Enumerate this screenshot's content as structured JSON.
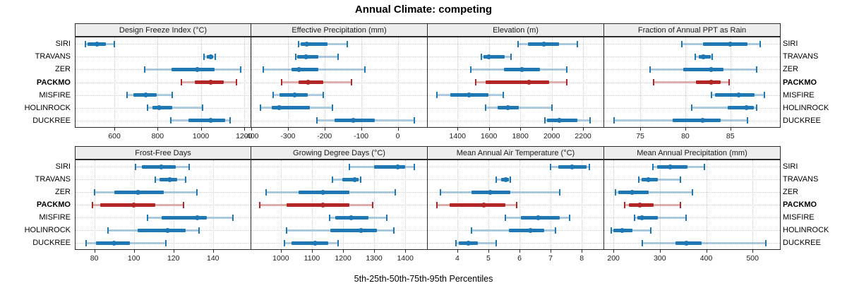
{
  "title": "Annual Climate: competing",
  "xlabel": "5th-25th-50th-75th-95th Percentiles",
  "chart_data": {
    "type": "dot-interval-trellis",
    "title": "Annual Climate: competing",
    "xlabel": "5th-25th-50th-75th-95th Percentiles",
    "percentiles_shown": [
      "5th",
      "25th",
      "50th",
      "75th",
      "95th"
    ],
    "sites": [
      "SIRI",
      "TRAVANS",
      "ZER",
      "PACKMO",
      "MISFIRE",
      "HOLINROCK",
      "DUCKREE"
    ],
    "highlight_site": "PACKMO",
    "legend_position": "none",
    "grid": "dotted",
    "layout": "2 rows x 4 columns, site labels on left and right of each row",
    "colors": {
      "series_normal": "#1f77b4",
      "series_normal_light": "rgba(31,119,180,0.35)",
      "series_highlight": "#b22725",
      "series_highlight_light": "rgba(178,39,37,0.35)",
      "strip_background": "#ededed",
      "panel_border": "#2b2b2b",
      "gridline": "#c9c9c9"
    },
    "panels": [
      {
        "title": "Design Freeze Index (°C)",
        "xlim": [
          420,
          1230
        ],
        "ticks": [
          600,
          800,
          1000,
          1200
        ],
        "values": [
          [
            467,
            474,
            518,
            559,
            600
          ],
          [
            1014,
            1028,
            1044,
            1056,
            1067
          ],
          [
            741,
            863,
            985,
            1063,
            1185
          ],
          [
            909,
            971,
            1044,
            1107,
            1164
          ],
          [
            660,
            689,
            746,
            797,
            868
          ],
          [
            754,
            776,
            806,
            868,
            1007
          ],
          [
            860,
            944,
            1044,
            1112,
            1134
          ]
        ]
      },
      {
        "title": "Effective Precipitation (mm)",
        "xlim": [
          -400,
          80
        ],
        "ticks": [
          -400,
          -300,
          -200,
          -100,
          0
        ],
        "values": [
          [
            -271,
            -266,
            -249,
            -191,
            -138
          ],
          [
            -279,
            -274,
            -251,
            -217,
            -162
          ],
          [
            -367,
            -290,
            -269,
            -217,
            -90
          ],
          [
            -317,
            -271,
            -245,
            -204,
            -126
          ],
          [
            -340,
            -322,
            -281,
            -245,
            -204
          ],
          [
            -374,
            -345,
            -324,
            -240,
            -178
          ],
          [
            -220,
            -172,
            -122,
            -63,
            46
          ]
        ]
      },
      {
        "title": "Elevation (m)",
        "xlim": [
          1210,
          2330
        ],
        "ticks": [
          1400,
          1600,
          1800,
          2000,
          2200
        ],
        "values": [
          [
            1785,
            1850,
            1950,
            2045,
            2165
          ],
          [
            1550,
            1565,
            1600,
            1700,
            1740
          ],
          [
            1485,
            1695,
            1810,
            1925,
            2095
          ],
          [
            1515,
            1580,
            1855,
            1985,
            2095
          ],
          [
            1270,
            1355,
            1475,
            1595,
            1690
          ],
          [
            1580,
            1655,
            1720,
            1790,
            2000
          ],
          [
            1955,
            1970,
            2050,
            2165,
            2245
          ]
        ]
      },
      {
        "title": "Fraction of Annual PPT as Rain",
        "xlim": [
          71,
          90.5
        ],
        "ticks": [
          75,
          80,
          85
        ],
        "values": [
          [
            79.6,
            82.0,
            85.0,
            86.9,
            88.3
          ],
          [
            81.1,
            81.5,
            82.0,
            82.8,
            83.0
          ],
          [
            76.1,
            79.8,
            82.9,
            84.2,
            87.9
          ],
          [
            76.5,
            81.2,
            82.9,
            83.9,
            84.9
          ],
          [
            82.9,
            83.3,
            85.9,
            87.7,
            88.8
          ],
          [
            80.7,
            84.7,
            86.8,
            87.6,
            87.9
          ],
          [
            72.1,
            78.6,
            81.9,
            83.9,
            86.9
          ]
        ]
      },
      {
        "title": "Frost-Free Days",
        "xlim": [
          70.5,
          159
        ],
        "ticks": [
          80,
          100,
          120,
          140
        ],
        "values": [
          [
            101,
            104,
            114,
            121,
            128
          ],
          [
            111,
            113,
            118,
            122,
            126
          ],
          [
            80,
            90,
            102,
            115,
            132
          ],
          [
            79,
            83,
            100,
            111,
            125
          ],
          [
            107,
            114,
            132,
            137,
            150
          ],
          [
            87,
            102,
            117,
            126,
            133
          ],
          [
            76,
            81,
            90,
            98,
            116
          ]
        ]
      },
      {
        "title": "Growing Degree Days (°C)",
        "xlim": [
          905,
          1470
        ],
        "ticks": [
          1000,
          1100,
          1200,
          1300,
          1400
        ],
        "values": [
          [
            1220,
            1300,
            1375,
            1400,
            1430
          ],
          [
            1165,
            1197,
            1238,
            1250,
            1256
          ],
          [
            953,
            1057,
            1135,
            1220,
            1368
          ],
          [
            933,
            1019,
            1135,
            1220,
            1295
          ],
          [
            1156,
            1175,
            1226,
            1281,
            1340
          ],
          [
            1019,
            1160,
            1257,
            1310,
            1363
          ],
          [
            1011,
            1034,
            1110,
            1152,
            1184
          ]
        ]
      },
      {
        "title": "Mean Annual Air Temperature (°C)",
        "xlim": [
          3.05,
          8.7
        ],
        "ticks": [
          4,
          5,
          6,
          7,
          8
        ],
        "values": [
          [
            7.0,
            7.25,
            7.7,
            8.15,
            8.25
          ],
          [
            5.25,
            5.4,
            5.55,
            5.65,
            5.7
          ],
          [
            3.45,
            4.45,
            5.05,
            5.7,
            7.3
          ],
          [
            3.35,
            3.75,
            4.85,
            5.55,
            5.9
          ],
          [
            5.55,
            6.05,
            6.6,
            7.3,
            7.6
          ],
          [
            4.45,
            5.65,
            6.35,
            6.8,
            7.15
          ],
          [
            3.95,
            4.05,
            4.35,
            4.65,
            5.25
          ]
        ]
      },
      {
        "title": "Mean Annual Precipitation (mm)",
        "xlim": [
          180,
          559
        ],
        "ticks": [
          200,
          300,
          400,
          500
        ],
        "values": [
          [
            285,
            294,
            323,
            359,
            396
          ],
          [
            255,
            261,
            275,
            296,
            344
          ],
          [
            204,
            211,
            240,
            276,
            371
          ],
          [
            224,
            233,
            257,
            286,
            345
          ],
          [
            245,
            251,
            262,
            295,
            356
          ],
          [
            195,
            200,
            219,
            241,
            281
          ],
          [
            262,
            334,
            357,
            390,
            528
          ]
        ]
      }
    ]
  }
}
